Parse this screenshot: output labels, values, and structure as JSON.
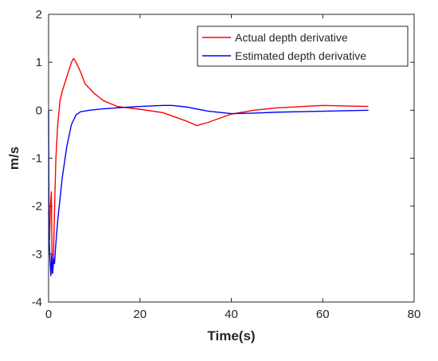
{
  "chart_data": {
    "type": "line",
    "xlabel": "Time(s)",
    "ylabel": "m/s",
    "xlim": [
      0,
      80
    ],
    "ylim": [
      -4,
      2
    ],
    "xticks": [
      "0",
      "20",
      "40",
      "60",
      "80"
    ],
    "yticks": [
      "2",
      "1",
      "0",
      "-1",
      "-2",
      "-3",
      "-4"
    ],
    "grid": false,
    "legend": {
      "location": "top-right"
    },
    "series": [
      {
        "name": "Actual depth derivative",
        "color": "#ff0000",
        "x": [
          0,
          0.2,
          0.4,
          0.6,
          0.8,
          1.0,
          1.2,
          1.4,
          1.6,
          2.0,
          2.5,
          3.0,
          3.5,
          4.0,
          4.5,
          5.0,
          5.5,
          6.0,
          7.0,
          8.0,
          10.0,
          12.0,
          15.0,
          20.0,
          25.0,
          30.0,
          32.5,
          35.0,
          40.0,
          45.0,
          50.0,
          60.0,
          70.0
        ],
        "y": [
          -2.1,
          -2.7,
          -2.0,
          -1.7,
          -3.4,
          -3.3,
          -2.5,
          -1.7,
          -1.0,
          -0.3,
          0.2,
          0.4,
          0.55,
          0.7,
          0.85,
          1.0,
          1.08,
          1.0,
          0.8,
          0.55,
          0.35,
          0.2,
          0.08,
          0.02,
          -0.05,
          -0.22,
          -0.32,
          -0.25,
          -0.08,
          0.0,
          0.05,
          0.1,
          0.08
        ]
      },
      {
        "name": "Estimated depth derivative",
        "color": "#0000ff",
        "x": [
          0,
          0.1,
          0.3,
          0.5,
          0.7,
          0.9,
          1.1,
          1.3,
          1.5,
          2.0,
          3.0,
          4.0,
          5.0,
          6.0,
          7.0,
          9.0,
          12.0,
          15.0,
          20.0,
          25.0,
          27.0,
          30.0,
          35.0,
          40.0,
          45.0,
          50.0,
          60.0,
          70.0
        ],
        "y": [
          0.0,
          -2.6,
          -3.1,
          -3.45,
          -3.0,
          -3.4,
          -3.1,
          -3.2,
          -2.9,
          -2.3,
          -1.4,
          -0.75,
          -0.3,
          -0.1,
          -0.03,
          0.0,
          0.03,
          0.05,
          0.08,
          0.1,
          0.1,
          0.07,
          -0.02,
          -0.07,
          -0.06,
          -0.04,
          -0.02,
          0.0
        ]
      }
    ]
  }
}
